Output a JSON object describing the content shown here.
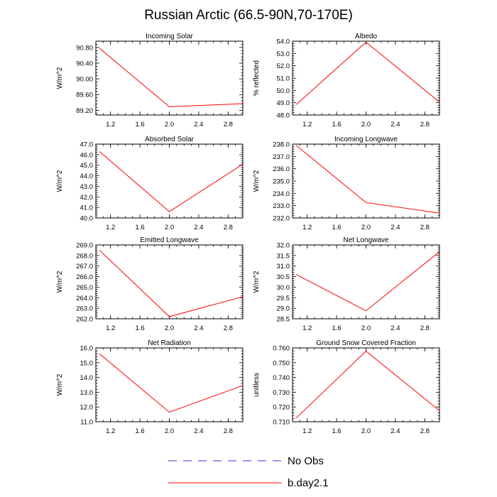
{
  "title": "Russian Arctic (66.5-90N,70-170E)",
  "legend": [
    {
      "label": "No Obs",
      "color": "#3333cc",
      "dashed": true
    },
    {
      "label": "b.day2.1",
      "color": "#ff0000",
      "dashed": false
    }
  ],
  "chart_data": [
    {
      "type": "line",
      "title": "Incoming Solar",
      "ylabel": "W/m^2",
      "xlim": [
        1.0,
        3.0
      ],
      "xticks": [
        1.2,
        1.6,
        2.0,
        2.4,
        2.8
      ],
      "xtick_labels": [
        "1.2",
        "1.6",
        "2.0",
        "2.4",
        "2.8"
      ],
      "ylim": [
        89.08,
        90.96
      ],
      "yticks": [
        89.2,
        89.6,
        90.0,
        90.4,
        90.8
      ],
      "ytick_labels": [
        "89.20",
        "89.60",
        "90.00",
        "90.40",
        "90.80"
      ],
      "series": [
        {
          "name": "b.day2.1",
          "color": "#ff0000",
          "x": [
            1.05,
            2.0,
            3.0
          ],
          "y": [
            90.78,
            89.29,
            89.37
          ]
        }
      ]
    },
    {
      "type": "line",
      "title": "Albedo",
      "ylabel": "% reflected",
      "xlim": [
        1.0,
        3.0
      ],
      "xticks": [
        1.2,
        1.6,
        2.0,
        2.4,
        2.8
      ],
      "xtick_labels": [
        "1.2",
        "1.6",
        "2.0",
        "2.4",
        "2.8"
      ],
      "ylim": [
        48.0,
        54.0
      ],
      "yticks": [
        48,
        49,
        50,
        51,
        52,
        53,
        54
      ],
      "ytick_labels": [
        "48.0",
        "49.0",
        "50.0",
        "51.0",
        "52.0",
        "53.0",
        "54.0"
      ],
      "series": [
        {
          "name": "b.day2.1",
          "color": "#ff0000",
          "x": [
            1.05,
            2.0,
            3.0
          ],
          "y": [
            48.85,
            53.92,
            49.05
          ]
        }
      ]
    },
    {
      "type": "line",
      "title": "Absorbed Solar",
      "ylabel": "W/m^2",
      "xlim": [
        1.0,
        3.0
      ],
      "xticks": [
        1.2,
        1.6,
        2.0,
        2.4,
        2.8
      ],
      "xtick_labels": [
        "1.2",
        "1.6",
        "2.0",
        "2.4",
        "2.8"
      ],
      "ylim": [
        40.0,
        47.0
      ],
      "yticks": [
        40,
        41,
        42,
        43,
        44,
        45,
        46,
        47
      ],
      "ytick_labels": [
        "40.0",
        "41.0",
        "42.0",
        "43.0",
        "44.0",
        "45.0",
        "46.0",
        "47.0"
      ],
      "series": [
        {
          "name": "b.day2.1",
          "color": "#ff0000",
          "x": [
            1.05,
            2.0,
            3.0
          ],
          "y": [
            46.3,
            40.6,
            45.1
          ]
        }
      ]
    },
    {
      "type": "line",
      "title": "Incoming Longwave",
      "ylabel": "W/m^2",
      "xlim": [
        1.0,
        3.0
      ],
      "xticks": [
        1.2,
        1.6,
        2.0,
        2.4,
        2.8
      ],
      "xtick_labels": [
        "1.2",
        "1.6",
        "2.0",
        "2.4",
        "2.8"
      ],
      "ylim": [
        232.0,
        238.0
      ],
      "yticks": [
        232,
        233,
        234,
        235,
        236,
        237,
        238
      ],
      "ytick_labels": [
        "232.0",
        "233.0",
        "234.0",
        "235.0",
        "236.0",
        "237.0",
        "238.0"
      ],
      "series": [
        {
          "name": "b.day2.1",
          "color": "#ff0000",
          "x": [
            1.05,
            2.0,
            3.0
          ],
          "y": [
            237.9,
            233.25,
            232.4
          ]
        }
      ]
    },
    {
      "type": "line",
      "title": "Emitted Longwave",
      "ylabel": "W/m^2",
      "xlim": [
        1.0,
        3.0
      ],
      "xticks": [
        1.2,
        1.6,
        2.0,
        2.4,
        2.8
      ],
      "xtick_labels": [
        "1.2",
        "1.6",
        "2.0",
        "2.4",
        "2.8"
      ],
      "ylim": [
        262.0,
        269.0
      ],
      "yticks": [
        262,
        263,
        264,
        265,
        266,
        267,
        268,
        269
      ],
      "ytick_labels": [
        "262.0",
        "263.0",
        "264.0",
        "265.0",
        "266.0",
        "267.0",
        "268.0",
        "269.0"
      ],
      "series": [
        {
          "name": "b.day2.1",
          "color": "#ff0000",
          "x": [
            1.05,
            2.0,
            3.0
          ],
          "y": [
            268.5,
            262.2,
            264.1
          ]
        }
      ]
    },
    {
      "type": "line",
      "title": "Net Longwave",
      "ylabel": "W/m^2",
      "xlim": [
        1.0,
        3.0
      ],
      "xticks": [
        1.2,
        1.6,
        2.0,
        2.4,
        2.8
      ],
      "xtick_labels": [
        "1.2",
        "1.6",
        "2.0",
        "2.4",
        "2.8"
      ],
      "ylim": [
        28.5,
        32.0
      ],
      "yticks": [
        28.5,
        29.0,
        29.5,
        30.0,
        30.5,
        31.0,
        31.5,
        32.0
      ],
      "ytick_labels": [
        "28.5",
        "29.0",
        "29.5",
        "30.0",
        "30.5",
        "31.0",
        "31.5",
        "32.0"
      ],
      "series": [
        {
          "name": "b.day2.1",
          "color": "#ff0000",
          "x": [
            1.05,
            2.0,
            3.0
          ],
          "y": [
            30.6,
            28.88,
            31.68
          ]
        }
      ]
    },
    {
      "type": "line",
      "title": "Net Radiation",
      "ylabel": "W/m^2",
      "xlim": [
        1.0,
        3.0
      ],
      "xticks": [
        1.2,
        1.6,
        2.0,
        2.4,
        2.8
      ],
      "xtick_labels": [
        "1.2",
        "1.6",
        "2.0",
        "2.4",
        "2.8"
      ],
      "ylim": [
        11.0,
        16.0
      ],
      "yticks": [
        11,
        12,
        13,
        14,
        15,
        16
      ],
      "ytick_labels": [
        "11.0",
        "12.0",
        "13.0",
        "14.0",
        "15.0",
        "16.0"
      ],
      "series": [
        {
          "name": "b.day2.1",
          "color": "#ff0000",
          "x": [
            1.05,
            2.0,
            3.0
          ],
          "y": [
            15.6,
            11.65,
            13.45
          ]
        }
      ]
    },
    {
      "type": "line",
      "title": "Ground Snow Covered Fraction",
      "ylabel": "unitless",
      "xlim": [
        1.0,
        3.0
      ],
      "xticks": [
        1.2,
        1.6,
        2.0,
        2.4,
        2.8
      ],
      "xtick_labels": [
        "1.2",
        "1.6",
        "2.0",
        "2.4",
        "2.8"
      ],
      "ylim": [
        0.71,
        0.76
      ],
      "yticks": [
        0.71,
        0.72,
        0.73,
        0.74,
        0.75,
        0.76
      ],
      "ytick_labels": [
        "0.710",
        "0.720",
        "0.730",
        "0.740",
        "0.750",
        "0.760"
      ],
      "series": [
        {
          "name": "b.day2.1",
          "color": "#ff0000",
          "x": [
            1.05,
            2.0,
            3.0
          ],
          "y": [
            0.7125,
            0.7578,
            0.7175
          ]
        }
      ]
    }
  ]
}
